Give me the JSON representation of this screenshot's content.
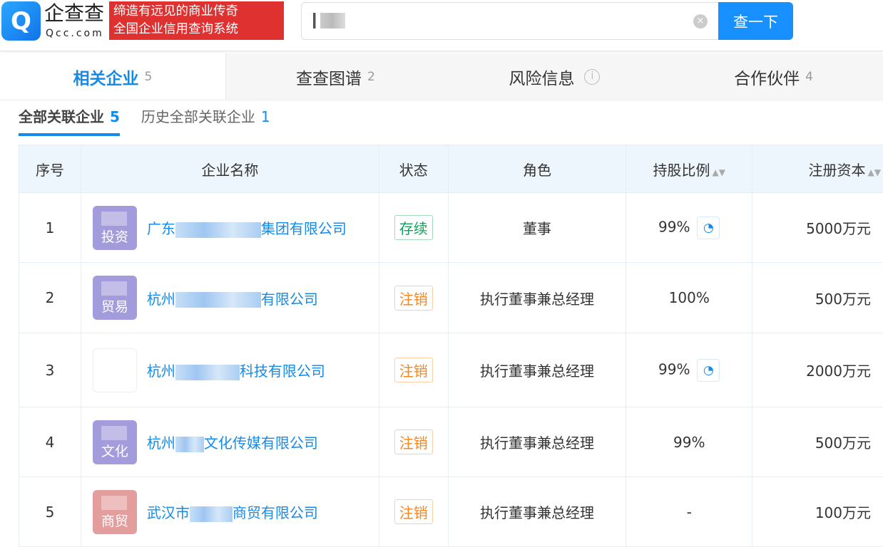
{
  "brand": {
    "logo_text": "企查查",
    "logo_sub": "Qcc.com",
    "slogan_1": "缔造有远见的商业传奇",
    "slogan_2": "全国企业信用查询系统"
  },
  "search": {
    "button": "查一下",
    "clear_icon": "clear-icon"
  },
  "tabs": [
    {
      "label": "相关企业",
      "count": "5"
    },
    {
      "label": "查查图谱",
      "count": "2"
    },
    {
      "label": "风险信息",
      "count": ""
    },
    {
      "label": "合作伙伴",
      "count": "4"
    }
  ],
  "subtabs": [
    {
      "label": "全部关联企业",
      "count": "5"
    },
    {
      "label": "历史全部关联企业",
      "count": "1"
    }
  ],
  "table": {
    "headers": [
      "序号",
      "企业名称",
      "状态",
      "角色",
      "持股比例",
      "注册资本"
    ],
    "rows": [
      {
        "no": "1",
        "avatar": "投资",
        "avatar_color": "#a29bdc",
        "prefix": "广东",
        "suffix": "集团有限公司",
        "status": "存续",
        "status_color": "#12a15a",
        "role": "董事",
        "share": "99%",
        "pie": true,
        "capital": "5000万元"
      },
      {
        "no": "2",
        "avatar": "贸易",
        "avatar_color": "#a29bdc",
        "prefix": "杭州",
        "suffix": "有限公司",
        "status": "注销",
        "status_color": "#f7861f",
        "role": "执行董事兼总经理",
        "share": "100%",
        "pie": false,
        "capital": "500万元"
      },
      {
        "no": "3",
        "avatar": "",
        "avatar_color": "#ffffff",
        "prefix": "杭州",
        "suffix": "科技有限公司",
        "status": "注销",
        "status_color": "#f7861f",
        "role": "执行董事兼总经理",
        "share": "99%",
        "pie": true,
        "capital": "2000万元"
      },
      {
        "no": "4",
        "avatar": "文化",
        "avatar_color": "#a29bdc",
        "prefix": "杭州",
        "suffix": "文化传媒有限公司",
        "status": "注销",
        "status_color": "#f7861f",
        "role": "执行董事兼总经理",
        "share": "99%",
        "pie": false,
        "capital": "500万元"
      },
      {
        "no": "5",
        "avatar": "商贸",
        "avatar_color": "#e39d9d",
        "prefix": "武汉市",
        "suffix": "商贸有限公司",
        "status": "注销",
        "status_color": "#f7861f",
        "role": "执行董事兼总经理",
        "share": "-",
        "pie": false,
        "capital": "100万元"
      }
    ]
  }
}
